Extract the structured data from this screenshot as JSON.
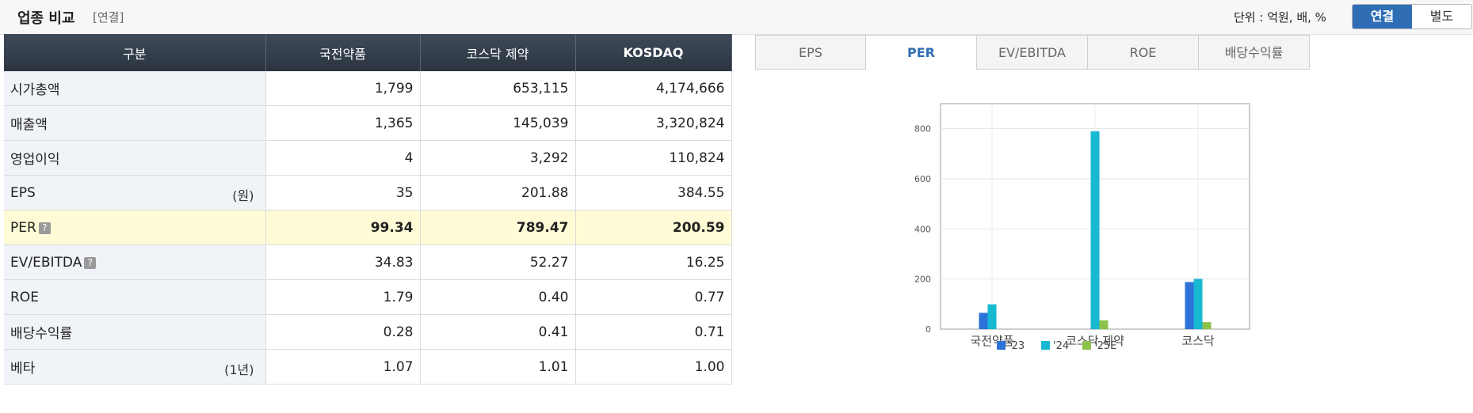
{
  "header": {
    "title": "업종 비교",
    "subtitle": "[연결]",
    "unit_label": "단위 : 억원, 배, %",
    "toggle": [
      "연결",
      "별도"
    ]
  },
  "table": {
    "columns": [
      "구분",
      "국전약품",
      "코스닥 제약",
      "KOSDAQ"
    ],
    "rows": [
      {
        "label": "시가총액",
        "unit": "",
        "values": [
          "1,799",
          "653,115",
          "4,174,666"
        ]
      },
      {
        "label": "매출액",
        "unit": "",
        "values": [
          "1,365",
          "145,039",
          "3,320,824"
        ]
      },
      {
        "label": "영업이익",
        "unit": "",
        "values": [
          "4",
          "3,292",
          "110,824"
        ]
      },
      {
        "label": "EPS",
        "unit": "(원)",
        "values": [
          "35",
          "201.88",
          "384.55"
        ]
      },
      {
        "label": "PER",
        "unit": "",
        "values": [
          "99.34",
          "789.47",
          "200.59"
        ]
      },
      {
        "label": "EV/EBITDA",
        "unit": "",
        "values": [
          "34.83",
          "52.27",
          "16.25"
        ]
      },
      {
        "label": "ROE",
        "unit": "",
        "values": [
          "1.79",
          "0.40",
          "0.77"
        ]
      },
      {
        "label": "배당수익률",
        "unit": "",
        "values": [
          "0.28",
          "0.41",
          "0.71"
        ]
      },
      {
        "label": "베타",
        "unit": "(1년)",
        "values": [
          "1.07",
          "1.01",
          "1.00"
        ]
      }
    ],
    "help_icon": "?"
  },
  "tabs": [
    "EPS",
    "PER",
    "EV/EBITDA",
    "ROE",
    "배당수익률"
  ],
  "active_tab": "PER",
  "colors": {
    "accent": "#2f6db5",
    "series": [
      "#2d72d9",
      "#17b8d2",
      "#8bc34a"
    ]
  },
  "chart_data": {
    "type": "bar",
    "categories": [
      "국전약품",
      "코스닥 제약",
      "코스닥"
    ],
    "series": [
      {
        "name": "'23",
        "values": [
          65,
          0,
          188
        ]
      },
      {
        "name": "'24",
        "values": [
          99,
          789.47,
          200.59
        ]
      },
      {
        "name": "'25E",
        "values": [
          0,
          35,
          28
        ]
      }
    ],
    "ylim": [
      0,
      900
    ],
    "yticks": [
      0,
      200,
      400,
      600,
      800
    ],
    "grid": true,
    "legend": "bottom"
  }
}
